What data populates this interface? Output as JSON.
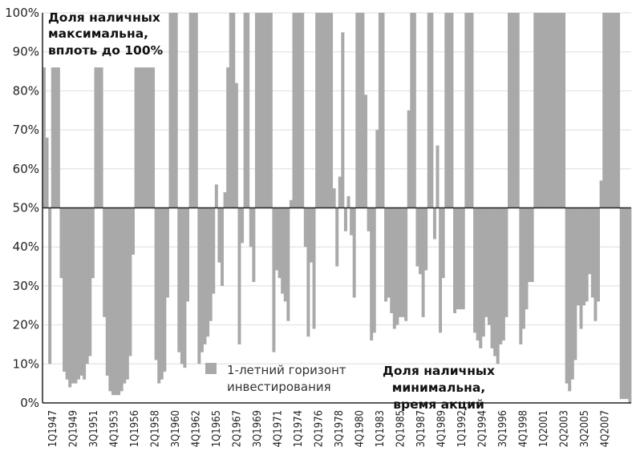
{
  "chart_data": {
    "type": "bar",
    "baseline": 50,
    "ylim": [
      0,
      100
    ],
    "yticks": [
      "0%",
      "10%",
      "20%",
      "30%",
      "40%",
      "50%",
      "60%",
      "70%",
      "80%",
      "90%",
      "100%"
    ],
    "tick_labels": [
      "1Q1947",
      "2Q1949",
      "3Q1951",
      "4Q1953",
      "1Q1956",
      "2Q1958",
      "3Q1960",
      "4Q1962",
      "1Q1965",
      "2Q1967",
      "3Q1969",
      "4Q1971",
      "1Q1974",
      "2Q1976",
      "3Q1978",
      "4Q1980",
      "1Q1983",
      "2Q1985",
      "3Q1987",
      "4Q1989",
      "1Q1992",
      "2Q1994",
      "3Q1996",
      "4Q1998",
      "1Q2001",
      "2Q2003",
      "3Q2005",
      "4Q2007"
    ],
    "annotation_top": [
      "Доля наличных",
      "максимальна,",
      "вплоть до 100%"
    ],
    "annotation_bottom": [
      "Доля наличных",
      "минимальна,",
      "время акций"
    ],
    "legend": [
      "1-летний горизонт",
      "инвестирования"
    ],
    "color": "#a9a9a9",
    "series": [
      {
        "name": "1-летний горизонт инвестирования",
        "values": [
          86,
          68,
          10,
          86,
          86,
          86,
          32,
          8,
          6,
          4,
          5,
          5,
          6,
          7,
          6,
          10,
          12,
          32,
          86,
          86,
          86,
          22,
          7,
          3,
          2,
          2,
          2,
          3,
          5,
          6,
          12,
          38,
          86,
          86,
          86,
          86,
          86,
          86,
          86,
          11,
          5,
          6,
          8,
          27,
          100,
          100,
          100,
          13,
          10,
          9,
          26,
          100,
          100,
          100,
          10,
          13,
          15,
          17,
          21,
          28,
          56,
          36,
          30,
          54,
          86,
          100,
          100,
          82,
          15,
          41,
          100,
          100,
          40,
          31,
          100,
          100,
          100,
          100,
          100,
          100,
          13,
          34,
          32,
          28,
          26,
          21,
          52,
          100,
          100,
          100,
          100,
          40,
          17,
          36,
          19,
          100,
          100,
          100,
          100,
          100,
          100,
          55,
          35,
          58,
          95,
          44,
          53,
          43,
          27,
          100,
          100,
          100,
          79,
          44,
          16,
          18,
          70,
          100,
          100,
          26,
          27,
          23,
          19,
          20,
          22,
          22,
          21,
          75,
          100,
          100,
          35,
          33,
          22,
          34,
          100,
          100,
          42,
          66,
          18,
          32,
          100,
          100,
          100,
          23,
          24,
          24,
          24,
          100,
          100,
          100,
          18,
          16,
          14,
          17,
          22,
          20,
          14,
          12,
          10,
          15,
          16,
          22,
          100,
          100,
          100,
          100,
          15,
          19,
          24,
          31,
          31,
          100,
          100,
          100,
          100,
          100,
          100,
          100,
          100,
          100,
          100,
          100,
          5,
          3,
          6,
          11,
          25,
          19,
          25,
          26,
          33,
          27,
          21,
          26,
          57,
          100,
          100,
          100,
          100,
          100,
          100,
          1,
          1,
          1,
          0
        ]
      }
    ]
  }
}
